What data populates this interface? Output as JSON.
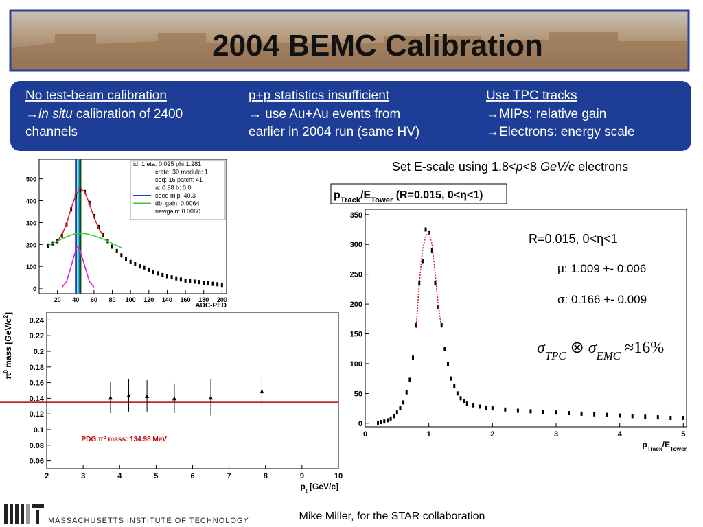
{
  "header": {
    "title": "2004 BEMC Calibration"
  },
  "columns": [
    {
      "heading": "No test-beam calibration",
      "lines": [
        [
          {
            "text": "→"
          },
          {
            "text": "in situ",
            "italic": true
          },
          {
            "text": " calibration of 2400"
          }
        ],
        "channels"
      ]
    },
    {
      "heading": "p+p statistics insufficient",
      "lines": [
        "→ use Au+Au events from",
        "earlier in 2004 run (same HV)"
      ]
    },
    {
      "heading": "Use TPC tracks",
      "lines": [
        "→MIPs: relative gain",
        "→Electrons: energy scale"
      ]
    }
  ],
  "chart_data": [
    {
      "type": "scatter",
      "xlabel": "ADC-PED",
      "xlim": [
        0,
        205
      ],
      "ylim": [
        -25,
        590
      ],
      "xticks": [
        20,
        40,
        60,
        80,
        100,
        120,
        140,
        160,
        180,
        200
      ],
      "yticks": [
        0,
        100,
        200,
        300,
        400,
        500
      ],
      "stats": [
        {
          "text": "id: 1 eta: 0.025 phi:1.281"
        },
        {
          "text": "crate: 30 module: 1"
        },
        {
          "text": "seq: 16 patch: 41"
        },
        {
          "text": "a: 0.98 b: 0.0"
        },
        {
          "text": "seed mip: 40.3",
          "color": "#1f3fbf"
        },
        {
          "text": "db_gain: 0.0064",
          "color": "#33cc33"
        },
        {
          "text": "newgain: 0.0060"
        }
      ],
      "vlines": [
        {
          "x": 40.3,
          "color": "#1f3fbf"
        },
        {
          "x": 43,
          "color": "#22bbcc"
        },
        {
          "x": 45,
          "color": "#0b4d1a"
        }
      ],
      "series": [
        {
          "style": "points",
          "color": "#000000",
          "x": [
            10,
            15,
            20,
            25,
            30,
            35,
            40,
            45,
            50,
            55,
            60,
            65,
            70,
            75,
            80,
            85,
            90,
            95,
            100,
            105,
            110,
            115,
            120,
            125,
            130,
            135,
            140,
            145,
            150,
            155,
            160,
            165,
            170,
            175,
            180,
            185,
            190,
            195,
            200
          ],
          "values": [
            195,
            205,
            215,
            240,
            290,
            360,
            420,
            450,
            440,
            390,
            330,
            280,
            245,
            215,
            190,
            170,
            150,
            135,
            120,
            110,
            100,
            95,
            85,
            75,
            68,
            60,
            55,
            50,
            45,
            40,
            35,
            32,
            30,
            28,
            25,
            22,
            20,
            18,
            15
          ]
        },
        {
          "style": "line",
          "color": "#e02020",
          "x": [
            20,
            25,
            30,
            35,
            40,
            45,
            50,
            55,
            60,
            65,
            70
          ],
          "values": [
            215,
            245,
            295,
            365,
            425,
            455,
            440,
            385,
            325,
            275,
            240
          ]
        },
        {
          "style": "line",
          "color": "#33cc33",
          "x": [
            10,
            20,
            30,
            40,
            50,
            60,
            70,
            80,
            90
          ],
          "values": [
            195,
            215,
            235,
            250,
            250,
            240,
            225,
            205,
            185
          ]
        },
        {
          "style": "line",
          "color": "#e020e0",
          "x": [
            25,
            30,
            35,
            40,
            42,
            45,
            50,
            55,
            60
          ],
          "values": [
            5,
            30,
            100,
            175,
            190,
            170,
            100,
            30,
            5
          ]
        }
      ]
    },
    {
      "type": "scatter",
      "xlabel": [
        {
          "text": "p"
        },
        {
          "text": "t",
          "sub": true
        },
        {
          "text": " [GeV/c]"
        }
      ],
      "ylabel": [
        {
          "text": "π"
        },
        {
          "text": "0",
          "sup": true
        },
        {
          "text": " mass [GeV/c"
        },
        {
          "text": "2",
          "sup": true
        },
        {
          "text": "]"
        }
      ],
      "xlim": [
        2,
        10
      ],
      "ylim": [
        0.05,
        0.25
      ],
      "xticks": [
        2,
        3,
        4,
        5,
        6,
        7,
        8,
        9,
        10
      ],
      "yticks": [
        0.06,
        0.08,
        0.1,
        0.12,
        0.14,
        0.16,
        0.18,
        0.2,
        0.22,
        0.24
      ],
      "reference_line": {
        "value": 0.13498,
        "color": "#c00000",
        "label": "PDG π⁰ mass: 134.98 MeV"
      },
      "series": [
        {
          "style": "points",
          "color": "#000000",
          "x": [
            3.75,
            4.25,
            4.75,
            5.5,
            6.5,
            7.9
          ],
          "values": [
            0.141,
            0.144,
            0.143,
            0.14,
            0.141,
            0.149
          ],
          "errors": [
            0.02,
            0.021,
            0.02,
            0.019,
            0.023,
            0.019
          ]
        }
      ]
    },
    {
      "type": "scatter",
      "caption": [
        {
          "text": "Set E-scale using 1.8<"
        },
        {
          "text": "p",
          "italic": true
        },
        {
          "text": "<8 "
        },
        {
          "text": "GeV/c",
          "italic": true
        },
        {
          "text": " electrons"
        }
      ],
      "title": [
        {
          "text": "p"
        },
        {
          "text": "Track",
          "sub": true
        },
        {
          "text": "/E"
        },
        {
          "text": "Tower",
          "sub": true
        },
        {
          "text": " (R=0.015, 0<η<1)"
        }
      ],
      "xlabel": [
        {
          "text": "p"
        },
        {
          "text": "Track",
          "sub": true
        },
        {
          "text": "/E"
        },
        {
          "text": "Tower",
          "sub": true
        }
      ],
      "annotations": [
        "R=0.015, 0<η<1",
        "μ: 1.009 +- 0.006",
        "σ: 0.166 +- 0.009"
      ],
      "formula": [
        {
          "text": "σ",
          "italic": true
        },
        {
          "text": "TPC",
          "sub": true,
          "italic": true
        },
        {
          "text": " ⊗ "
        },
        {
          "text": "σ",
          "italic": true
        },
        {
          "text": "EMC",
          "sub": true,
          "italic": true
        },
        {
          "text": " ≈16%"
        }
      ],
      "xlim": [
        0,
        5.05
      ],
      "ylim": [
        -6,
        359
      ],
      "xticks": [
        0,
        1,
        2,
        3,
        4,
        5
      ],
      "yticks": [
        0,
        50,
        100,
        150,
        200,
        250,
        300,
        350
      ],
      "series": [
        {
          "style": "points",
          "color": "#000000",
          "x": [
            0.2,
            0.25,
            0.3,
            0.35,
            0.4,
            0.45,
            0.5,
            0.55,
            0.6,
            0.65,
            0.7,
            0.75,
            0.8,
            0.85,
            0.9,
            0.95,
            1.0,
            1.05,
            1.1,
            1.15,
            1.2,
            1.25,
            1.3,
            1.35,
            1.4,
            1.45,
            1.5,
            1.55,
            1.6,
            1.7,
            1.8,
            1.9,
            2.0,
            2.2,
            2.4,
            2.6,
            2.8,
            3.0,
            3.2,
            3.4,
            3.6,
            3.8,
            4.0,
            4.2,
            4.4,
            4.6,
            4.8,
            5.0
          ],
          "values": [
            1,
            2,
            3,
            5,
            8,
            12,
            18,
            25,
            35,
            52,
            73,
            110,
            165,
            235,
            272,
            325,
            320,
            290,
            235,
            195,
            165,
            125,
            100,
            75,
            62,
            50,
            42,
            37,
            33,
            30,
            28,
            26,
            25,
            23,
            21,
            20,
            19,
            18,
            17,
            16,
            15,
            14,
            13,
            12,
            11,
            10,
            9,
            9
          ]
        },
        {
          "style": "dotted",
          "color": "#cc2020",
          "x": [
            0.8,
            0.85,
            0.9,
            0.95,
            1.0,
            1.05,
            1.1,
            1.15,
            1.2
          ],
          "values": [
            160,
            235,
            290,
            315,
            320,
            300,
            250,
            195,
            160
          ]
        }
      ]
    }
  ],
  "footer": {
    "institute": "MASSACHUSETTS INSTITUTE OF TECHNOLOGY",
    "credit": "Mike Miller, for the STAR collaboration"
  }
}
